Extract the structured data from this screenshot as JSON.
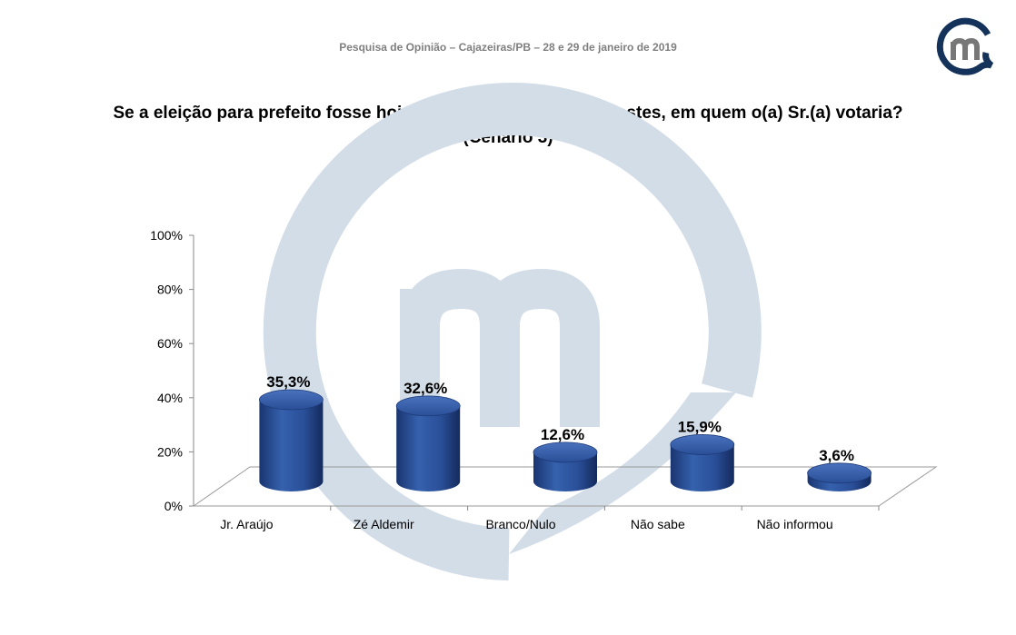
{
  "header": {
    "text": "Pesquisa de Opinião – Cajazeiras/PB – 28 e 29 de janeiro de 2019"
  },
  "logo": {
    "letter": "m",
    "ring_color": "#14325a",
    "letter_color": "#777777"
  },
  "watermark_color": "#d3dde8",
  "chart_data": {
    "type": "bar",
    "style": "3d-cylinder",
    "title": "Se a eleição para prefeito fosse hoje e os candidatos fossem estes, em quem o(a) Sr.(a) votaria?",
    "subtitle": "(Cenário 3)",
    "categories": [
      "Jr. Araújo",
      "Zé Aldemir",
      "Branco/Nulo",
      "Não sabe",
      "Não informou"
    ],
    "values": [
      35.3,
      32.6,
      12.6,
      15.9,
      3.6
    ],
    "data_labels": [
      "35,3%",
      "32,6%",
      "12,6%",
      "15,9%",
      "3,6%"
    ],
    "y_ticks": [
      "0%",
      "20%",
      "40%",
      "60%",
      "80%",
      "100%"
    ],
    "ylim": [
      0,
      100
    ],
    "grid": false,
    "legend": "none",
    "bar_color": "#2b4f9a"
  }
}
